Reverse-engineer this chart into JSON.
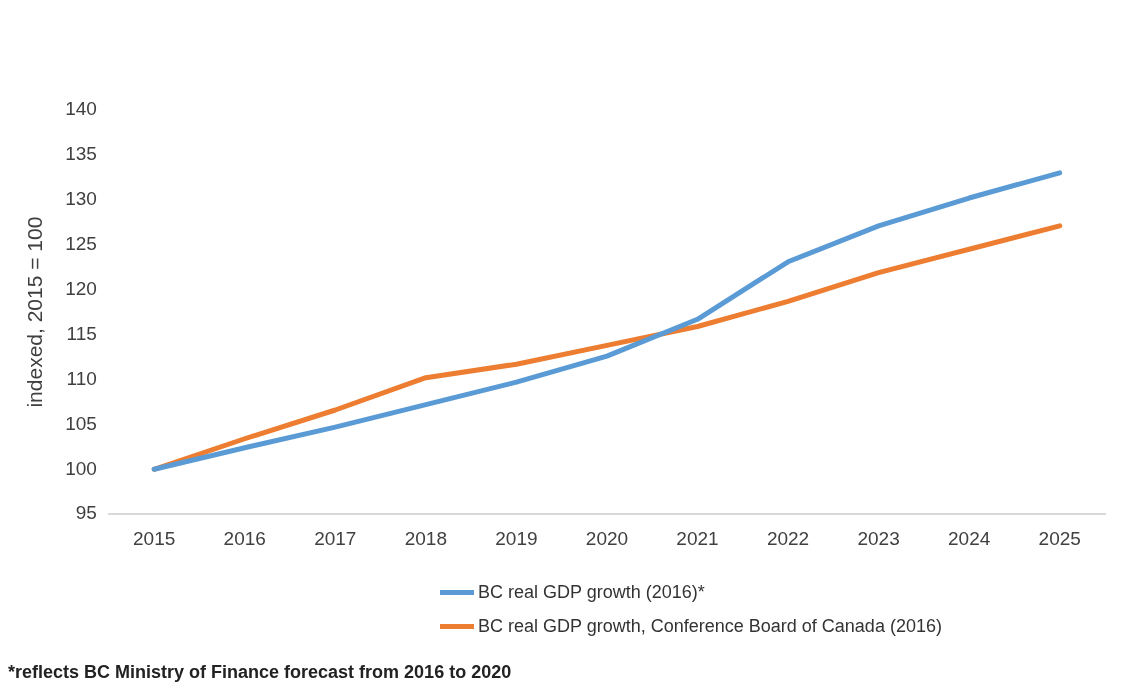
{
  "chart_data": {
    "type": "line",
    "ylabel": "indexed, 2015 = 100",
    "categories": [
      "2015",
      "2016",
      "2017",
      "2018",
      "2019",
      "2020",
      "2021",
      "2022",
      "2023",
      "2024",
      "2025"
    ],
    "series": [
      {
        "name": "BC real GDP growth (2016)*",
        "color": "#5b9bd5",
        "values": [
          100,
          102.4,
          104.7,
          107.2,
          109.7,
          112.6,
          116.7,
          123.1,
          127.1,
          130.2,
          133.0
        ]
      },
      {
        "name": "BC real GDP growth, Conference Board of Canada (2016)",
        "color": "#ed7d31",
        "values": [
          100,
          103.4,
          106.6,
          110.2,
          111.7,
          113.8,
          115.9,
          118.7,
          121.9,
          124.5,
          127.1
        ]
      }
    ],
    "ylim": [
      95,
      140
    ],
    "yticks": [
      95,
      100,
      105,
      110,
      115,
      120,
      125,
      130,
      135,
      140
    ],
    "grid": false,
    "legend": "bottom",
    "marker": "none",
    "line_style": "solid",
    "annotations": [
      "*reflects BC Ministry of Finance forecast from 2016 to 2020"
    ]
  }
}
